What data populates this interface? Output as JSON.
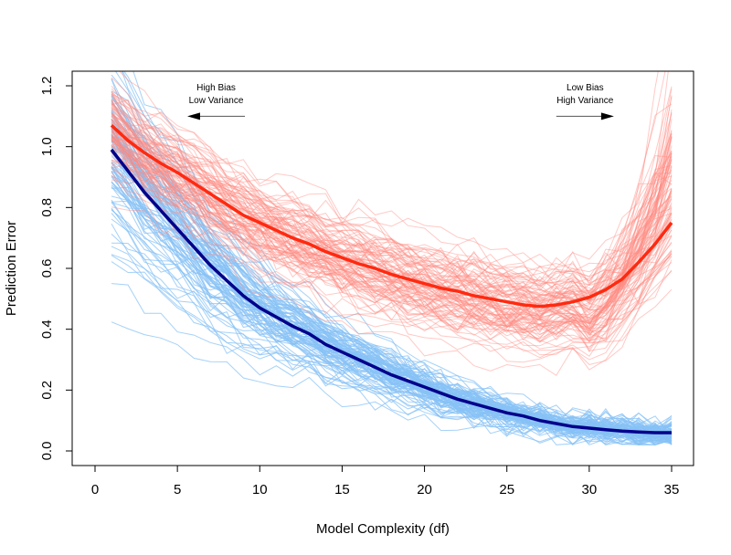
{
  "chart_data": {
    "type": "line",
    "title": "",
    "xlabel": "Model Complexity (df)",
    "ylabel": "Prediction Error",
    "xlim": [
      -1.4,
      36.3
    ],
    "ylim": [
      -0.05,
      1.25
    ],
    "xticks": [
      "0",
      "5",
      "10",
      "15",
      "20",
      "25",
      "30",
      "35"
    ],
    "yticks": [
      "0.0",
      "0.2",
      "0.4",
      "0.6",
      "0.8",
      "1.0",
      "1.2"
    ],
    "grid": false,
    "x": [
      1,
      2,
      3,
      4,
      5,
      6,
      7,
      8,
      9,
      10,
      11,
      12,
      13,
      14,
      15,
      16,
      17,
      18,
      19,
      20,
      21,
      22,
      23,
      24,
      25,
      26,
      27,
      28,
      29,
      30,
      31,
      32,
      33,
      34,
      35
    ],
    "series": [
      {
        "role": "mean-training-error",
        "color": "#00008b",
        "values": [
          0.99,
          0.92,
          0.85,
          0.79,
          0.73,
          0.67,
          0.61,
          0.56,
          0.51,
          0.47,
          0.44,
          0.41,
          0.385,
          0.35,
          0.325,
          0.3,
          0.275,
          0.25,
          0.23,
          0.21,
          0.19,
          0.17,
          0.155,
          0.14,
          0.125,
          0.115,
          0.1,
          0.09,
          0.08,
          0.075,
          0.07,
          0.065,
          0.062,
          0.06,
          0.06
        ]
      },
      {
        "role": "mean-test-error",
        "color": "#ff2a10",
        "values": [
          1.07,
          1.02,
          0.98,
          0.945,
          0.915,
          0.88,
          0.845,
          0.81,
          0.775,
          0.75,
          0.725,
          0.7,
          0.68,
          0.655,
          0.635,
          0.615,
          0.6,
          0.58,
          0.565,
          0.55,
          0.535,
          0.525,
          0.51,
          0.5,
          0.49,
          0.48,
          0.475,
          0.48,
          0.49,
          0.505,
          0.53,
          0.565,
          0.62,
          0.68,
          0.75
        ]
      }
    ],
    "replicate_colors": {
      "training": "#87c1f5",
      "test": "#ff8a80"
    },
    "annotations": [
      {
        "line1": "High Bias",
        "line2": "Low Variance",
        "arrow": "left",
        "at": [
          9.1,
          1.1
        ],
        "to": [
          5.6,
          1.1
        ]
      },
      {
        "line1": "Low Bias",
        "line2": "High Variance",
        "arrow": "right",
        "at": [
          28,
          1.1
        ],
        "to": [
          31.5,
          1.1
        ]
      }
    ]
  }
}
